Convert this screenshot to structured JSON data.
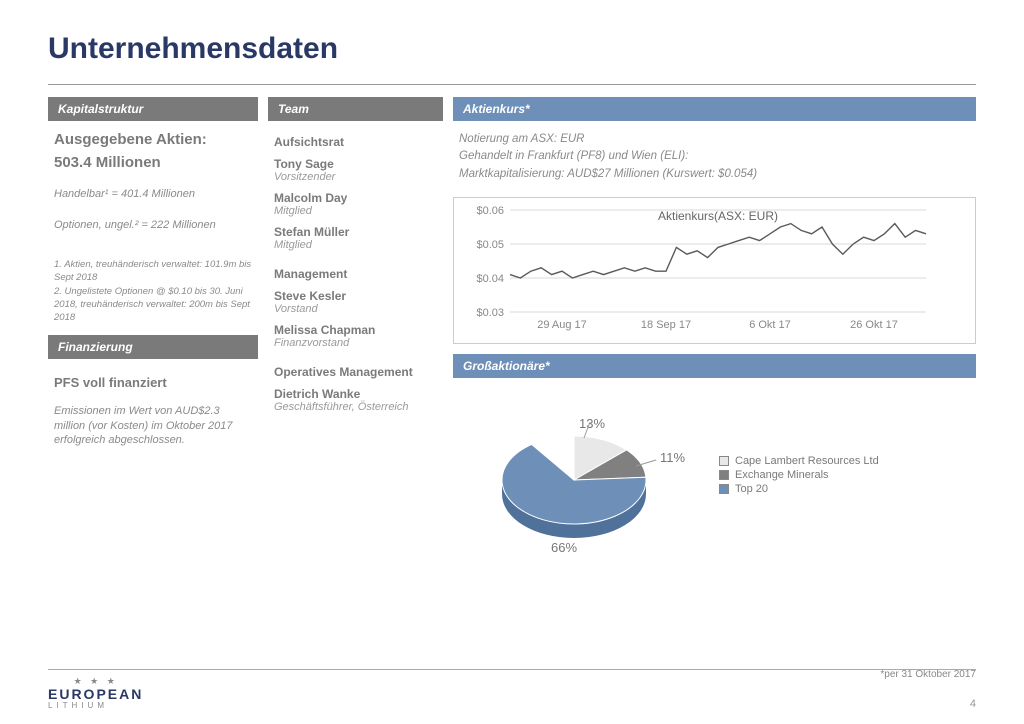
{
  "title": "Unternehmensdaten",
  "col1": {
    "kapital_header": "Kapitalstruktur",
    "aktien_label": "Ausgegebene Aktien:",
    "aktien_value": "503.4 Millionen",
    "handelbar": "Handelbar¹ = 401.4 Millionen",
    "optionen": "Optionen, ungel.² = 222 Millionen",
    "fn1": "1. Aktien, treuhänderisch verwaltet: 101.9m bis Sept 2018",
    "fn2": "2. Ungelistete Optionen @ $0.10 bis 30. Juni 2018, treuhänderisch verwaltet: 200m bis Sept 2018",
    "fin_header": "Finanzierung",
    "fin_title": "PFS voll finanziert",
    "fin_body": "Emissionen im Wert von AUD$2.3 million (vor Kosten) im Oktober 2017 erfolgreich abgeschlossen."
  },
  "col2": {
    "team_header": "Team",
    "aufsichtsrat": "Aufsichtsrat",
    "p1n": "Tony Sage",
    "p1r": "Vorsitzender",
    "p2n": "Malcolm Day",
    "p2r": "Mitglied",
    "p3n": "Stefan Müller",
    "p3r": "Mitglied",
    "management": "Management",
    "p4n": "Steve Kesler",
    "p4r": "Vorstand",
    "p5n": "Melissa Chapman",
    "p5r": "Finanzvorstand",
    "opmgmt": "Operatives Management",
    "p6n": "Dietrich Wanke",
    "p6r": "Geschäftsführer, Österreich"
  },
  "col3": {
    "kurs_header": "Aktienkurs*",
    "line1": "Notierung am ASX: EUR",
    "line2": "Gehandelt in Frankfurt (PF8) und Wien (ELI):",
    "line3": "Marktkapitalisierung: AUD$27 Millionen (Kurswert: $0.054)",
    "chart": {
      "title": "Aktienkurs(ASX: EUR)",
      "ylabels": [
        "$0.06",
        "$0.05",
        "$0.04",
        "$0.03"
      ],
      "yvalues": [
        0.06,
        0.05,
        0.04,
        0.03
      ],
      "xlabels": [
        "29 Aug 17",
        "18 Sep 17",
        "6 Okt 17",
        "26 Okt 17"
      ],
      "series": [
        0.041,
        0.04,
        0.042,
        0.043,
        0.041,
        0.042,
        0.04,
        0.041,
        0.042,
        0.041,
        0.042,
        0.043,
        0.042,
        0.043,
        0.042,
        0.042,
        0.049,
        0.047,
        0.048,
        0.046,
        0.049,
        0.05,
        0.051,
        0.052,
        0.051,
        0.053,
        0.055,
        0.056,
        0.054,
        0.053,
        0.055,
        0.05,
        0.047,
        0.05,
        0.052,
        0.051,
        0.053,
        0.056,
        0.052,
        0.054,
        0.053
      ],
      "ymin": 0.03,
      "ymax": 0.06,
      "line_color": "#5a5a5a",
      "grid_color": "#d9d9d9",
      "text_color": "#888888"
    },
    "gross_header": "Großaktionäre*",
    "pie": {
      "slices": [
        {
          "label": "Cape Lambert Resources Ltd",
          "value": 13,
          "color": "#e8e8e8"
        },
        {
          "label": "Exchange Minerals",
          "value": 11,
          "color": "#808080"
        },
        {
          "label": "Top 20",
          "value": 66,
          "color": "#6d8fb8"
        }
      ],
      "remainder_color": "#ffffff",
      "label_13": "13%",
      "label_11": "11%",
      "label_66": "66%"
    }
  },
  "asof": "*per 31 Oktober 2017",
  "footer": {
    "logo": "EUROPEAN",
    "logo_sub": "LITHIUM",
    "page": "4"
  }
}
